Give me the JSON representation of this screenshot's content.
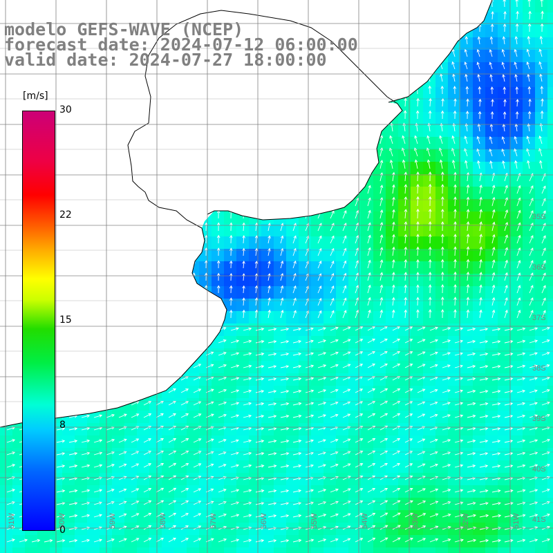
{
  "title": {
    "line1": "modelo GEFS-WAVE (NCEP)",
    "line2": "forecast date: 2024-07-12 06:00:00",
    "line3": "valid date: 2024-07-27 18:00:00"
  },
  "colorbar": {
    "unit": "[m/s]",
    "ticks": [
      "30",
      "22",
      "15",
      "8",
      "0"
    ],
    "tick_values": [
      30,
      22,
      15,
      8,
      0
    ],
    "colors": [
      "#0000ff",
      "#00ccff",
      "#00ffd5",
      "#22dd00",
      "#ffff00",
      "#ff0000",
      "#cc0077"
    ]
  },
  "map": {
    "variable": "wind speed",
    "land_color": "#ffffff",
    "grid_color": "#808080",
    "arrow_color": "#ffffff",
    "lat_labels": [
      "35S",
      "36S",
      "37S",
      "38S",
      "39S",
      "40S",
      "41S"
    ],
    "lon_labels": [
      "61W",
      "60W",
      "59W",
      "58W",
      "57W",
      "56W",
      "55W",
      "54W",
      "53W",
      "52W",
      "51W"
    ]
  }
}
